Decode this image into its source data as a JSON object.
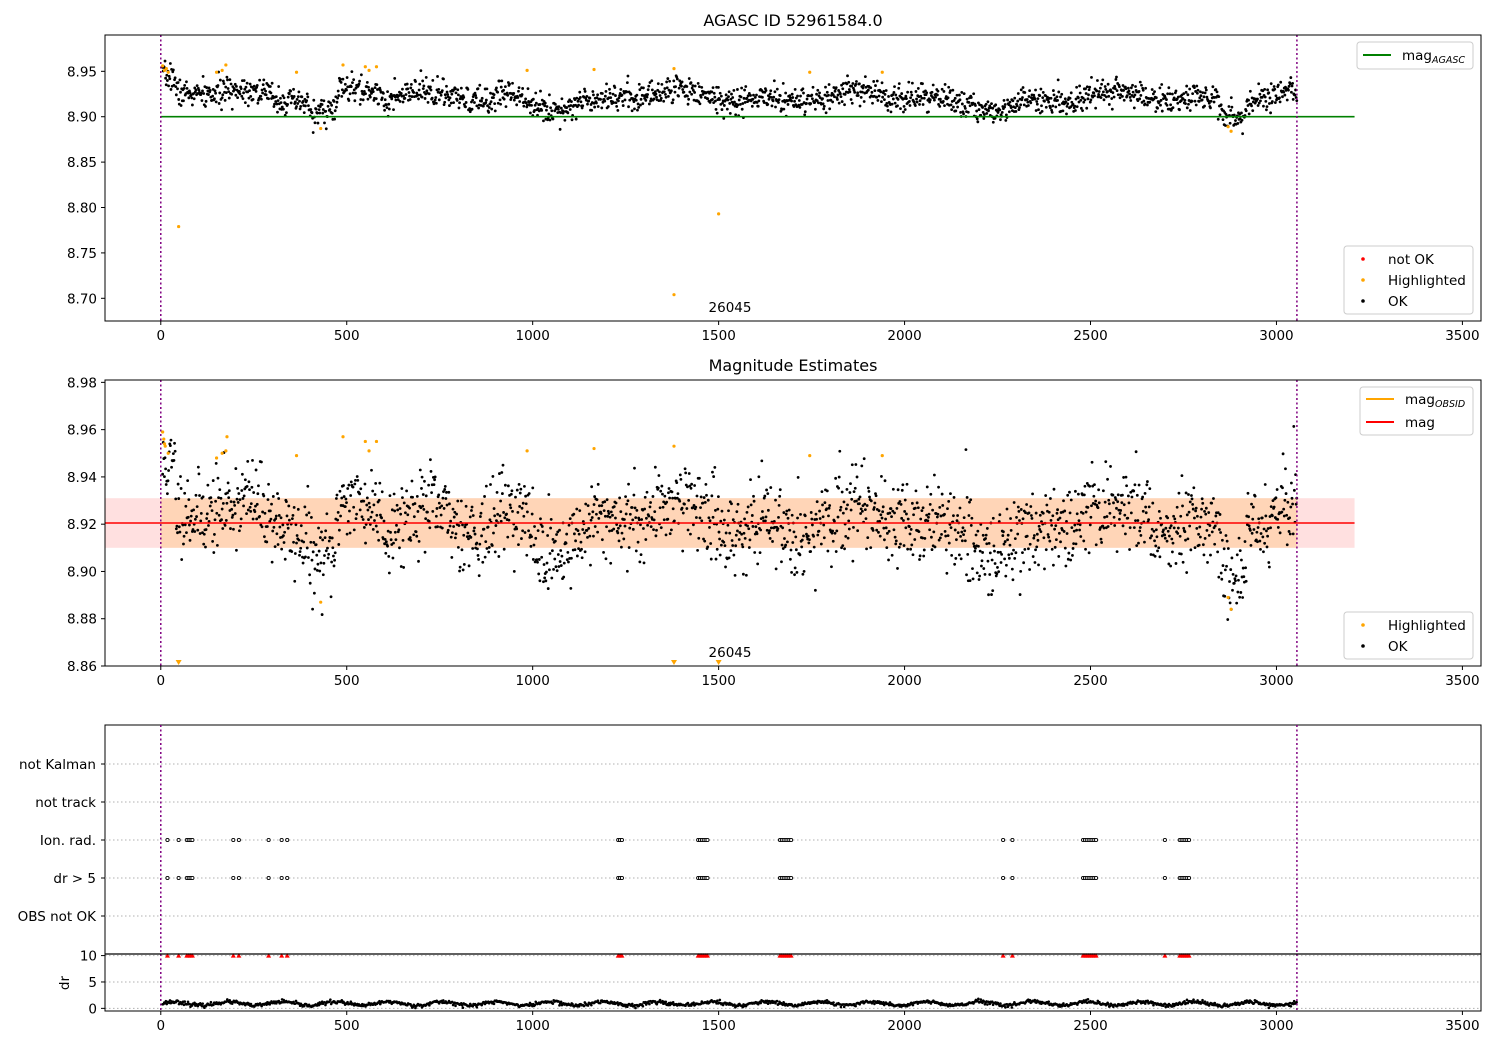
{
  "chart_data": [
    {
      "type": "scatter",
      "title": "AGASC ID 52961584.0",
      "xlim": [
        -150,
        3550
      ],
      "ylim": [
        8.675,
        8.99
      ],
      "xticks": [
        0,
        500,
        1000,
        1500,
        2000,
        2500,
        3000,
        3500
      ],
      "yticks": [
        8.7,
        8.75,
        8.8,
        8.85,
        8.9,
        8.95
      ],
      "ytick_labels": [
        "8.70",
        "8.75",
        "8.80",
        "8.85",
        "8.90",
        "8.95"
      ],
      "vlines": [
        0,
        3055
      ],
      "hlines": [
        {
          "y": 8.9,
          "x0": 0,
          "x1": 3210,
          "color": "#008000",
          "label": "mag",
          "sub": "AGASC"
        }
      ],
      "annotation": {
        "text": "26045",
        "x": 1462,
        "y": 8.679
      },
      "highlighted_points": [
        [
          5,
          8.956
        ],
        [
          10,
          8.951
        ],
        [
          15,
          8.953
        ],
        [
          20,
          8.949
        ],
        [
          48,
          8.779
        ],
        [
          150,
          8.949
        ],
        [
          165,
          8.951
        ],
        [
          175,
          8.957
        ],
        [
          365,
          8.949
        ],
        [
          430,
          8.887
        ],
        [
          490,
          8.957
        ],
        [
          550,
          8.955
        ],
        [
          560,
          8.951
        ],
        [
          580,
          8.955
        ],
        [
          985,
          8.951
        ],
        [
          1165,
          8.952
        ],
        [
          1380,
          8.953
        ],
        [
          1380,
          8.704
        ],
        [
          1500,
          8.793
        ],
        [
          1745,
          8.949
        ],
        [
          1940,
          8.949
        ],
        [
          2870,
          8.889
        ],
        [
          2878,
          8.884
        ]
      ],
      "series_ok": {
        "name": "OK",
        "color": "#000000",
        "x_range": [
          5,
          3055
        ],
        "base": 8.92
      },
      "legend_lines": [
        {
          "label": "mag",
          "sub": "AGASC",
          "color": "#008000"
        }
      ],
      "legend_markers": [
        {
          "label": "not OK",
          "color": "#ff0000"
        },
        {
          "label": "Highlighted",
          "color": "#ffa500"
        },
        {
          "label": "OK",
          "color": "#000000"
        }
      ]
    },
    {
      "type": "scatter",
      "title": "Magnitude Estimates",
      "xlim": [
        -150,
        3550
      ],
      "ylim": [
        8.86,
        8.981
      ],
      "xticks": [
        0,
        500,
        1000,
        1500,
        2000,
        2500,
        3000,
        3500
      ],
      "yticks": [
        8.86,
        8.88,
        8.9,
        8.92,
        8.94,
        8.96,
        8.98
      ],
      "ytick_labels": [
        "8.86",
        "8.88",
        "8.90",
        "8.92",
        "8.94",
        "8.96",
        "8.98"
      ],
      "vlines": [
        0,
        3055
      ],
      "band": {
        "y0": 8.91,
        "y1": 8.931,
        "x0": -150,
        "x1": 3210
      },
      "hlines": [
        {
          "y": 8.9205,
          "x0": -150,
          "x1": 3210,
          "color": "#ff0000",
          "label": "mag"
        }
      ],
      "annotation": {
        "text": "26045",
        "x": 1462,
        "y": 8.862
      },
      "highlighted_points": [
        [
          5,
          8.959
        ],
        [
          8,
          8.956
        ],
        [
          10,
          8.954
        ],
        [
          12,
          8.953
        ],
        [
          20,
          8.95
        ],
        [
          150,
          8.948
        ],
        [
          165,
          8.95
        ],
        [
          175,
          8.951
        ],
        [
          178,
          8.957
        ],
        [
          365,
          8.949
        ],
        [
          430,
          8.887
        ],
        [
          490,
          8.957
        ],
        [
          550,
          8.955
        ],
        [
          560,
          8.951
        ],
        [
          580,
          8.955
        ],
        [
          985,
          8.951
        ],
        [
          1165,
          8.952
        ],
        [
          1380,
          8.953
        ],
        [
          1745,
          8.949
        ],
        [
          1940,
          8.949
        ],
        [
          2870,
          8.889
        ],
        [
          2878,
          8.884
        ]
      ],
      "clipped_points": [
        48,
        1380,
        1500
      ],
      "series_ok": {
        "name": "OK",
        "color": "#000000",
        "x_range": [
          5,
          3055
        ],
        "base": 8.92
      },
      "legend_lines": [
        {
          "label": "mag",
          "sub": "OBSID",
          "color": "#ffa500"
        },
        {
          "label": "mag",
          "sub": "",
          "color": "#ff0000"
        }
      ],
      "legend_markers": [
        {
          "label": "Highlighted",
          "color": "#ffa500"
        },
        {
          "label": "OK",
          "color": "#000000"
        }
      ]
    },
    {
      "type": "scatter",
      "title": "",
      "xlim": [
        -150,
        3550
      ],
      "categories": [
        "not Kalman",
        "not track",
        "Ion. rad.",
        "dr > 5",
        "OBS not OK"
      ],
      "vlines": [
        0,
        3055
      ],
      "flag_rows": {
        "Ion. rad.": [
          18,
          48,
          70,
          75,
          80,
          85,
          195,
          210,
          290,
          325,
          340,
          1230,
          1235,
          1240,
          1445,
          1450,
          1455,
          1460,
          1465,
          1470,
          1665,
          1670,
          1675,
          1680,
          1685,
          1690,
          1695,
          2265,
          2290,
          2480,
          2485,
          2490,
          2495,
          2500,
          2505,
          2510,
          2515,
          2700,
          2740,
          2745,
          2750,
          2755,
          2760,
          2765
        ],
        "dr > 5": [
          18,
          48,
          70,
          75,
          80,
          85,
          195,
          210,
          290,
          325,
          340,
          1230,
          1235,
          1240,
          1445,
          1450,
          1455,
          1460,
          1465,
          1470,
          1665,
          1670,
          1675,
          1680,
          1685,
          1690,
          1695,
          2265,
          2290,
          2480,
          2485,
          2490,
          2495,
          2500,
          2505,
          2510,
          2515,
          2700,
          2740,
          2745,
          2750,
          2755,
          2760,
          2765
        ]
      }
    },
    {
      "type": "scatter",
      "title": "",
      "xlim": [
        -150,
        3550
      ],
      "ylim": [
        -0.5,
        10.3
      ],
      "yticks": [
        0,
        5,
        10
      ],
      "ytick_labels": [
        "0",
        "5",
        "10"
      ],
      "ylabel": "dr",
      "xticks": [
        0,
        500,
        1000,
        1500,
        2000,
        2500,
        3000,
        3500
      ],
      "vlines": [
        0,
        3055
      ],
      "clipped_x": [
        18,
        48,
        70,
        75,
        80,
        85,
        195,
        210,
        290,
        325,
        340,
        1230,
        1235,
        1240,
        1445,
        1450,
        1455,
        1460,
        1465,
        1470,
        1665,
        1670,
        1675,
        1680,
        1685,
        1690,
        1695,
        2265,
        2290,
        2480,
        2485,
        2490,
        2495,
        2500,
        2505,
        2510,
        2515,
        2700,
        2740,
        2745,
        2750,
        2755,
        2760,
        2765
      ],
      "series_ok": {
        "name": "dr",
        "color": "#000000",
        "x_range": [
          5,
          3055
        ],
        "base": 0.9
      }
    }
  ]
}
